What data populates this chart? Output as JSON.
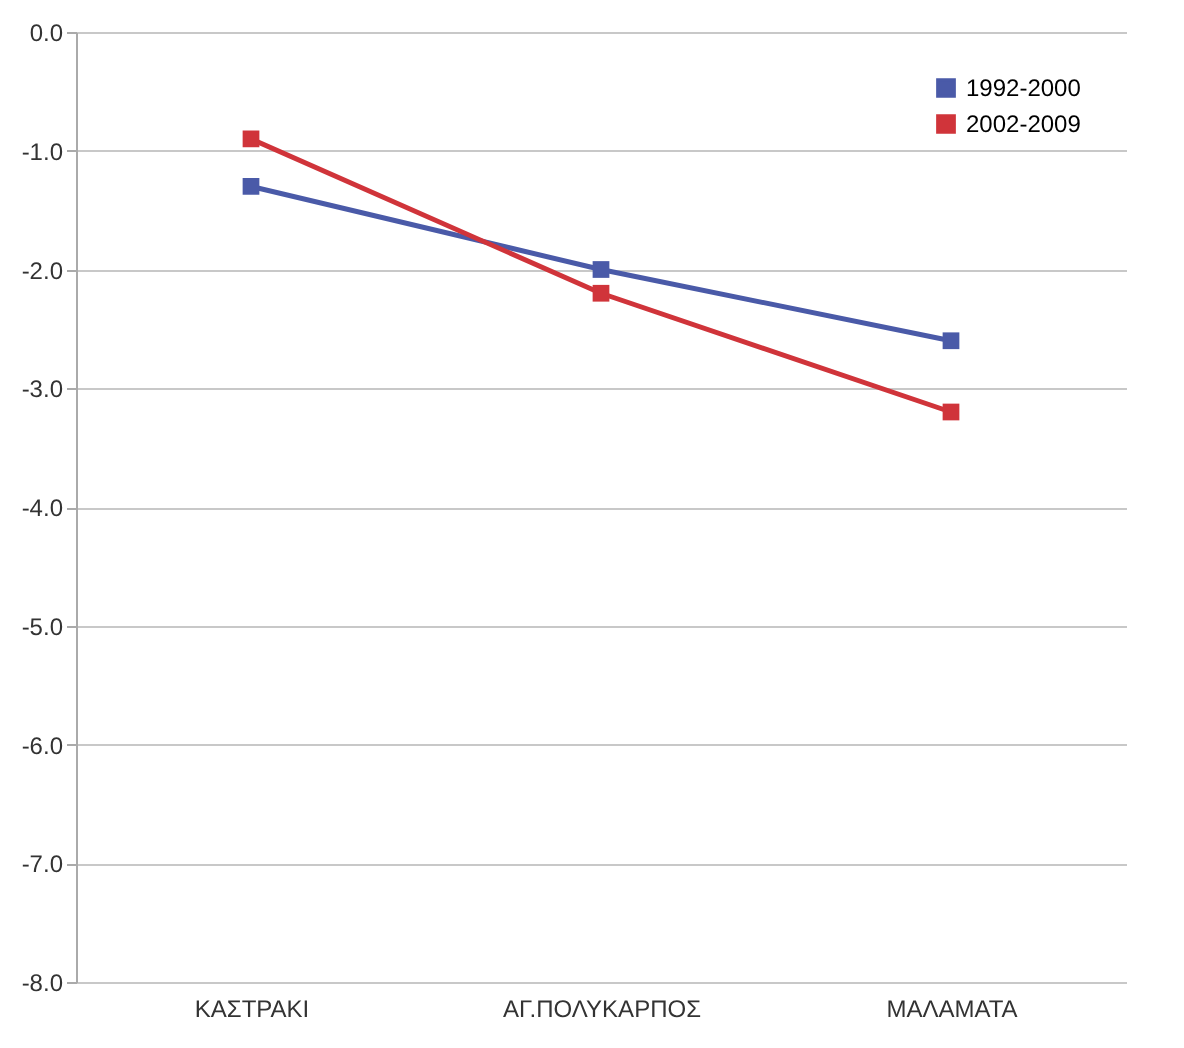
{
  "chart_data": {
    "type": "line",
    "categories": [
      "ΚΑΣΤΡΑΚΙ",
      "ΑΓ.ΠΟΛΥΚΑΡΠΟΣ",
      "ΜΑΛΑΜΑΤΑ"
    ],
    "series": [
      {
        "name": "1992-2000",
        "color": "#4a5aa8",
        "values": [
          -1.3,
          -2.0,
          -2.6
        ]
      },
      {
        "name": "2002-2009",
        "color": "#d0343a",
        "values": [
          -0.9,
          -2.2,
          -3.2
        ]
      }
    ],
    "ylim": [
      -8,
      0
    ],
    "yticks": [
      {
        "value": 0,
        "label": "0.0"
      },
      {
        "value": -1,
        "label": "-1.0"
      },
      {
        "value": -2,
        "label": "-2.0"
      },
      {
        "value": -3,
        "label": "-3.0"
      },
      {
        "value": -4,
        "label": "-4.0"
      },
      {
        "value": -5,
        "label": "-5.0"
      },
      {
        "value": -6,
        "label": "-6.0"
      },
      {
        "value": -7,
        "label": "-7.0"
      },
      {
        "value": -8,
        "label": "-8.0"
      }
    ],
    "grid": "y",
    "legend": "top right",
    "marker": "square",
    "line_style": "solid"
  }
}
